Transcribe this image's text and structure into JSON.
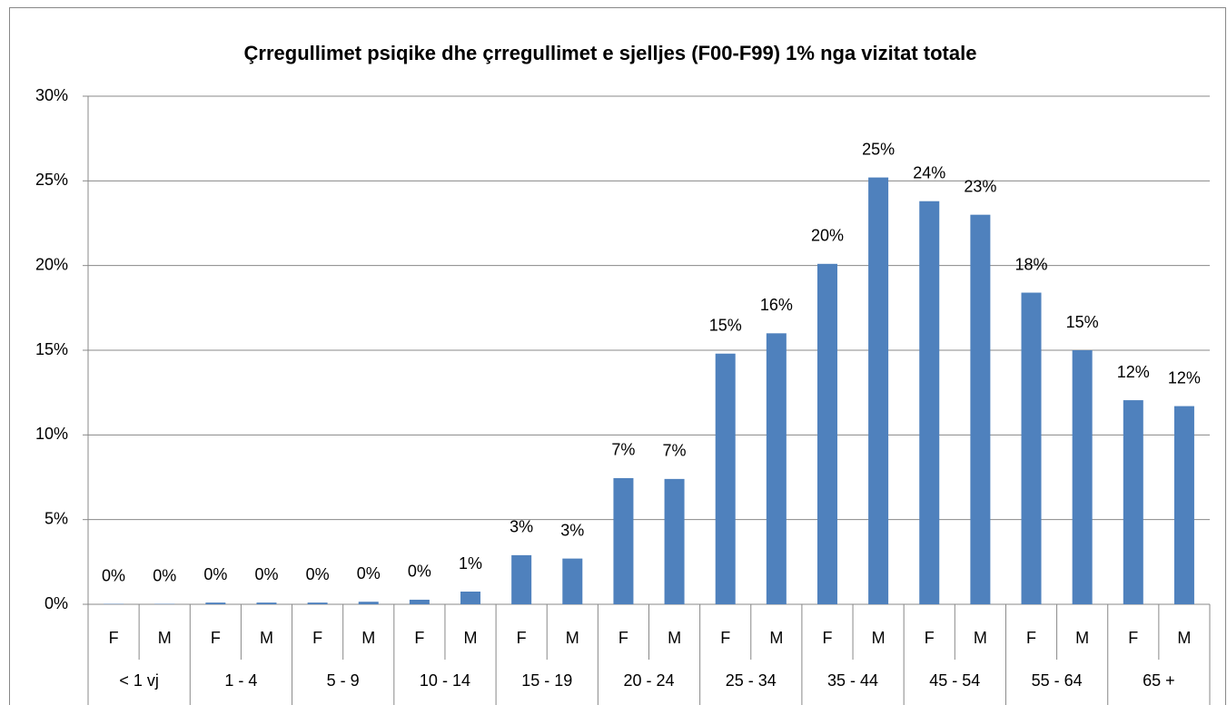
{
  "chart_data": {
    "type": "bar",
    "title": "Çrregullimet psiqike dhe çrregullimet e sjelljes (F00-F99)  1% nga vizitat totale",
    "categories": [
      "F",
      "M",
      "F",
      "M",
      "F",
      "M",
      "F",
      "M",
      "F",
      "M",
      "F",
      "M",
      "F",
      "M",
      "F",
      "M",
      "F",
      "M",
      "F",
      "M",
      "F",
      "M"
    ],
    "groups": [
      "< 1 vj",
      "1 - 4",
      "5 - 9",
      "10 - 14",
      "15 - 19",
      "20 - 24",
      "25 - 34",
      "35 - 44",
      "45 - 54",
      "55 - 64",
      "65 +"
    ],
    "values": [
      0.02,
      0.02,
      0.1,
      0.1,
      0.1,
      0.15,
      0.27,
      0.75,
      2.9,
      2.7,
      7.45,
      7.4,
      14.8,
      16.0,
      20.1,
      25.2,
      23.8,
      23.0,
      18.4,
      15.0,
      12.05,
      11.7
    ],
    "value_labels": [
      "0%",
      "0%",
      "0%",
      "0%",
      "0%",
      "0%",
      "0%",
      "1%",
      "3%",
      "3%",
      "7%",
      "7%",
      "15%",
      "16%",
      "20%",
      "25%",
      "24%",
      "23%",
      "18%",
      "15%",
      "12%",
      "12%"
    ],
    "color": "#4f81bd",
    "ylim": [
      0,
      30
    ],
    "yticks": [
      {
        "value": 0,
        "label": "0%"
      },
      {
        "value": 5,
        "label": "5%"
      },
      {
        "value": 10,
        "label": "10%"
      },
      {
        "value": 15,
        "label": "15%"
      },
      {
        "value": 20,
        "label": "20%"
      },
      {
        "value": 25,
        "label": "25%"
      },
      {
        "value": 30,
        "label": "30%"
      }
    ],
    "grid": true
  }
}
